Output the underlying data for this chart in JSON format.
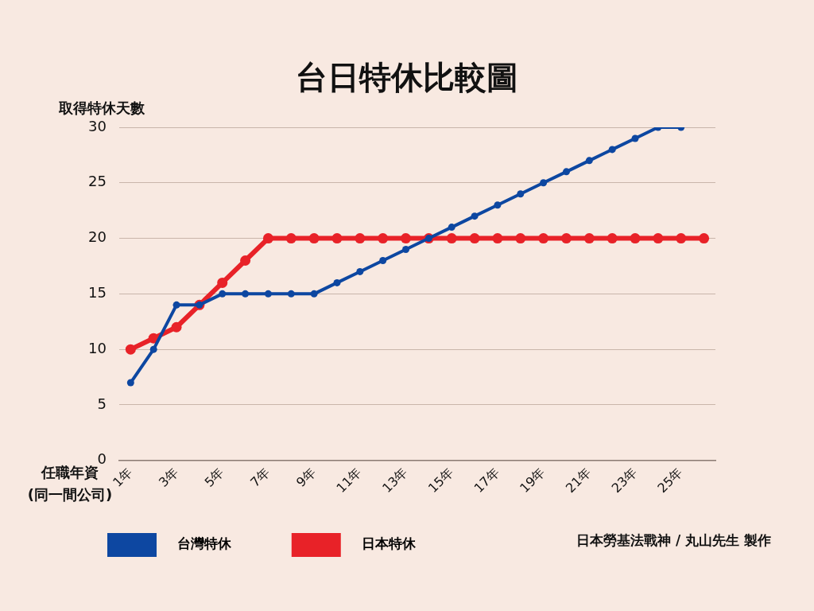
{
  "chart_data": {
    "type": "line",
    "title": "台日特休比較圖",
    "ylabel": "取得特休天數",
    "xlabel": "任職年資\n(同一間公司)",
    "categories": [
      "1年",
      null,
      "3年",
      null,
      "5年",
      null,
      "7年",
      null,
      "9年",
      null,
      "11年",
      null,
      "13年",
      null,
      "15年",
      null,
      "17年",
      null,
      "19年",
      null,
      "21年",
      null,
      "23年",
      null,
      "25年",
      null
    ],
    "series": [
      {
        "name": "台灣特休",
        "color": "#0d47a1",
        "values": [
          7,
          10,
          14,
          14,
          15,
          15,
          15,
          15,
          15,
          16,
          17,
          18,
          19,
          20,
          21,
          22,
          23,
          24,
          25,
          26,
          27,
          28,
          29,
          30,
          30,
          null
        ]
      },
      {
        "name": "日本特休",
        "color": "#e82228",
        "values": [
          10,
          11,
          12,
          14,
          16,
          18,
          20,
          20,
          20,
          20,
          20,
          20,
          20,
          20,
          20,
          20,
          20,
          20,
          20,
          20,
          20,
          20,
          20,
          20,
          20,
          20
        ]
      }
    ],
    "ylim": [
      0,
      30
    ],
    "yticks": [
      0,
      5,
      10,
      15,
      20,
      25,
      30
    ],
    "grid": "y",
    "legend": "bottom left",
    "marker": "circle",
    "annotations": [
      "日本勞基法戰神  /  丸山先生 製作"
    ]
  }
}
